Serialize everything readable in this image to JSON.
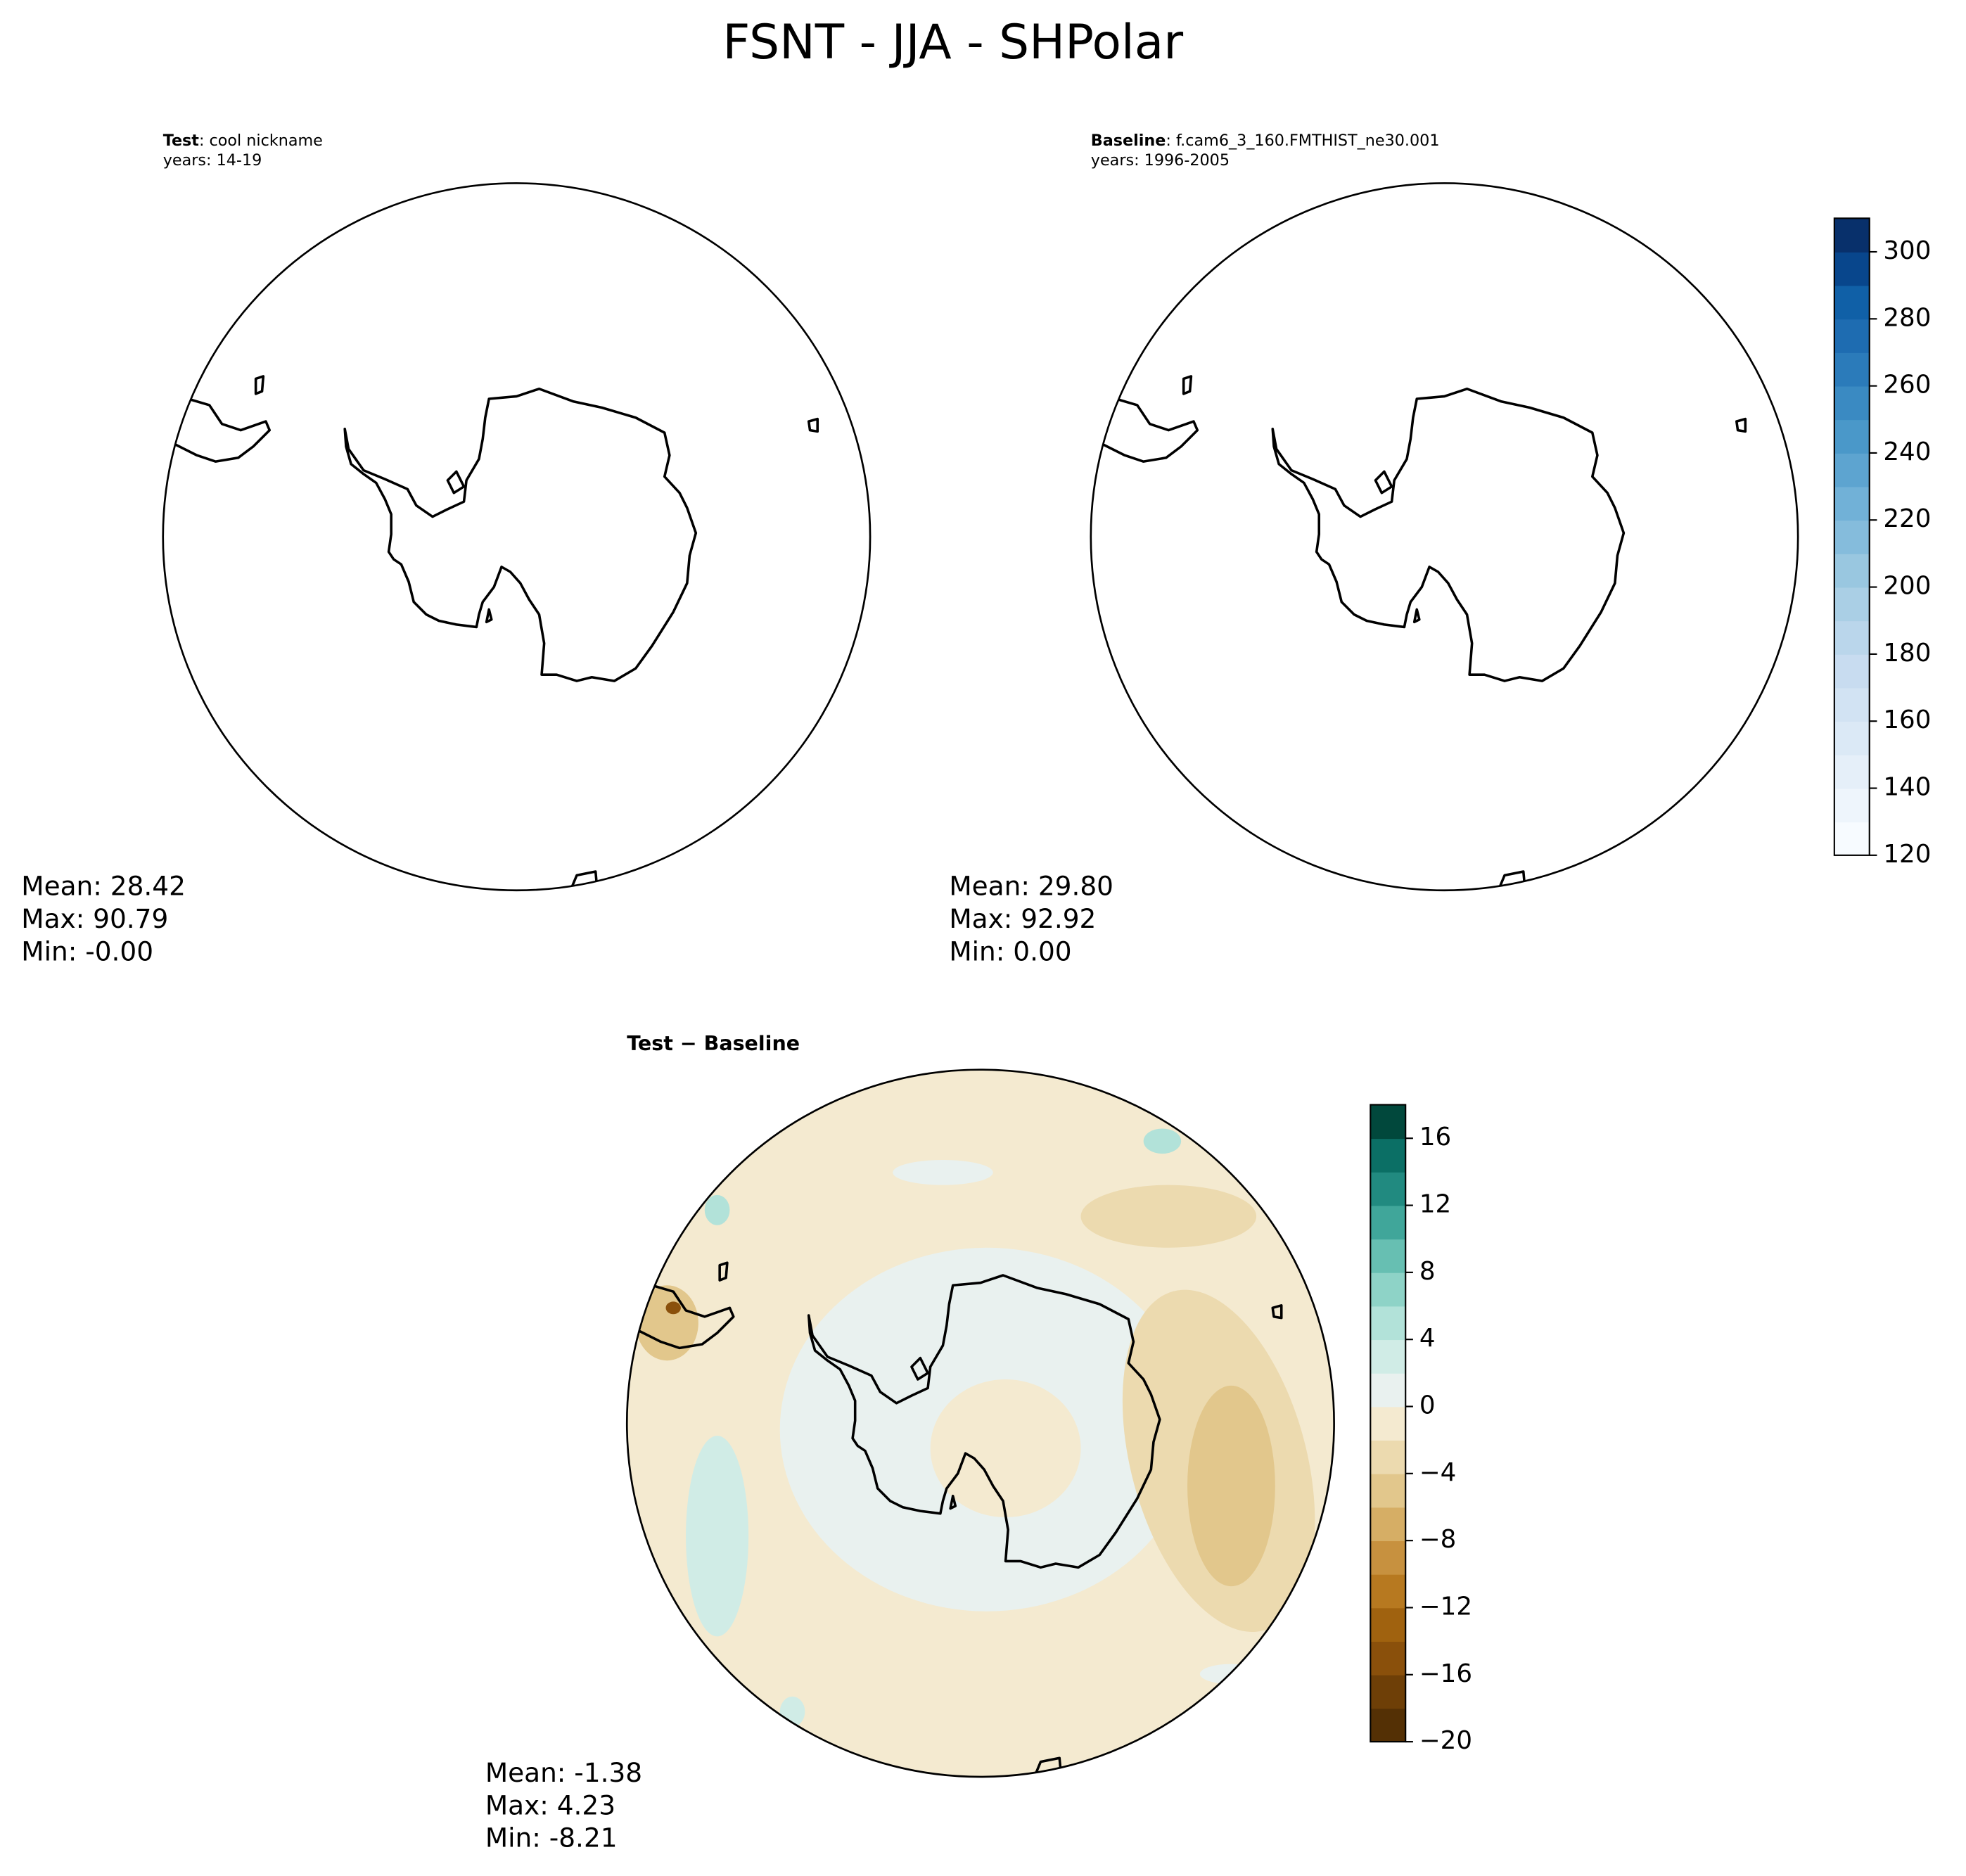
{
  "title": "FSNT - JJA - SHPolar",
  "panels": [
    {
      "label": "Test",
      "case": ": cool nickname",
      "years": "years: 14-19",
      "stats": [
        "Mean: 28.42",
        "Max: 90.79",
        "Min: -0.00"
      ]
    },
    {
      "label": "Baseline",
      "case": ": f.cam6_3_160.FMTHIST_ne30.001",
      "years": "years: 1996-2005",
      "stats": [
        "Mean: 29.80",
        "Max: 92.92",
        "Min:  0.00"
      ]
    },
    {
      "label": "Test − Baseline",
      "stats": [
        "Mean: -1.38",
        "Max:  4.23",
        "Min: -8.21"
      ]
    }
  ],
  "colorbars": [
    {
      "lim": [
        120,
        310
      ],
      "ticks": [
        120,
        140,
        160,
        180,
        200,
        220,
        240,
        260,
        280,
        300
      ],
      "colors": [
        "#f7fbff",
        "#eef5fc",
        "#e5eff9",
        "#dbe9f6",
        "#d2e3f3",
        "#c8dcf0",
        "#bad6eb",
        "#aacfe5",
        "#99c7e0",
        "#85bcdc",
        "#71b1d7",
        "#5da4d0",
        "#4a98c9",
        "#3a8ac2",
        "#2b7bba",
        "#1e6cb1",
        "#1060a7",
        "#08468c",
        "#08306b"
      ]
    },
    {
      "lim": [
        -20,
        18
      ],
      "ticks": [
        {
          "value": -20,
          "label": "−20"
        },
        {
          "value": -16,
          "label": "−16"
        },
        {
          "value": -12,
          "label": "−12"
        },
        {
          "value": -8,
          "label": "−8"
        },
        {
          "value": -4,
          "label": "−4"
        },
        0,
        4,
        8,
        12,
        16
      ],
      "colors": [
        "#543005",
        "#6e3f07",
        "#8a500b",
        "#a0620f",
        "#b77920",
        "#c7913f",
        "#d6ae65",
        "#e2c78c",
        "#ecdaaf",
        "#f4ead0",
        "#e9f1ef",
        "#d0ece6",
        "#b2e2d9",
        "#8ed3c7",
        "#67bfb2",
        "#40a69a",
        "#218a80",
        "#0b6f65",
        "#01483c"
      ]
    }
  ]
}
